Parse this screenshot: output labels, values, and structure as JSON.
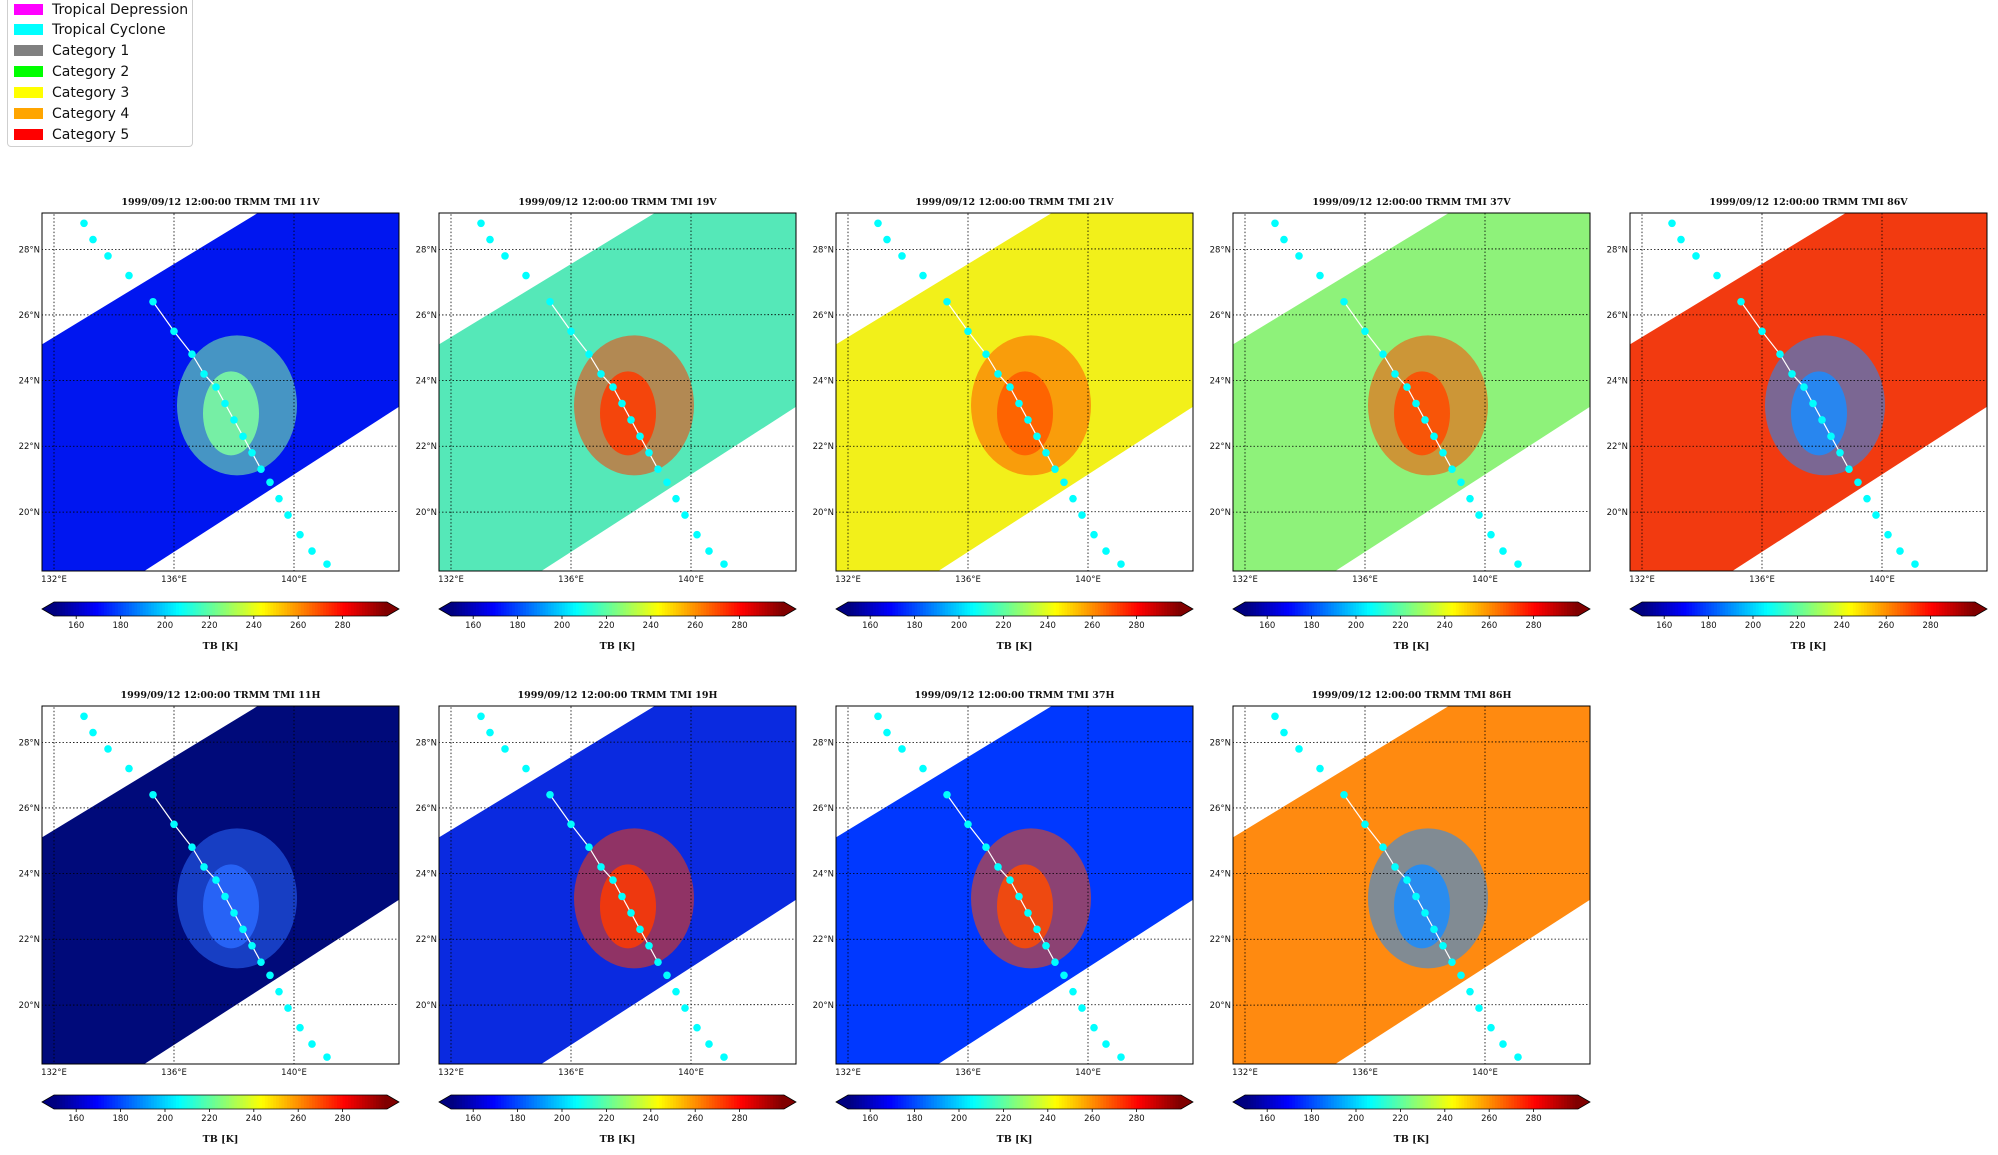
{
  "legend": {
    "items": [
      {
        "label": "Tropical Depression",
        "color": "#ff00ff"
      },
      {
        "label": "Tropical Cyclone",
        "color": "#00ffff"
      },
      {
        "label": "Category 1",
        "color": "#808080"
      },
      {
        "label": "Category 2",
        "color": "#00ff00"
      },
      {
        "label": "Category 3",
        "color": "#ffff00"
      },
      {
        "label": "Category 4",
        "color": "#ffa500"
      },
      {
        "label": "Category 5",
        "color": "#ff0000"
      }
    ]
  },
  "chart_data": [
    {
      "type": "heatmap",
      "title": "1999/09/12 12:00:00  TRMM TMI 11V",
      "channel": "11V",
      "background": "#0016f0",
      "core": "#7fffa0",
      "colorbar_label": "TB [K]"
    },
    {
      "type": "heatmap",
      "title": "1999/09/12 12:00:00  TRMM TMI 19V",
      "channel": "19V",
      "background": "#55e8b8",
      "core": "#ff3a00",
      "colorbar_label": "TB [K]"
    },
    {
      "type": "heatmap",
      "title": "1999/09/12 12:00:00  TRMM TMI 21V",
      "channel": "21V",
      "background": "#f2f01a",
      "core": "#ff5a00",
      "colorbar_label": "TB [K]"
    },
    {
      "type": "heatmap",
      "title": "1999/09/12 12:00:00  TRMM TMI 37V",
      "channel": "37V",
      "background": "#8ef27a",
      "core": "#ff4a00",
      "colorbar_label": "TB [K]"
    },
    {
      "type": "heatmap",
      "title": "1999/09/12 12:00:00  TRMM TMI 86V",
      "channel": "86V",
      "background": "#f23a10",
      "core": "#1a8cff",
      "colorbar_label": "TB [K]"
    },
    {
      "type": "heatmap",
      "title": "1999/09/12 12:00:00  TRMM TMI 11H",
      "channel": "11H",
      "background": "#000a7a",
      "core": "#2a6aff",
      "colorbar_label": "TB [K]"
    },
    {
      "type": "heatmap",
      "title": "1999/09/12 12:00:00  TRMM TMI 19H",
      "channel": "19H",
      "background": "#0a2ae0",
      "core": "#ff3a00",
      "colorbar_label": "TB [K]"
    },
    {
      "type": "heatmap",
      "title": "1999/09/12 12:00:00  TRMM TMI 37H",
      "channel": "37H",
      "background": "#0038ff",
      "core": "#ff4a00",
      "colorbar_label": "TB [K]"
    },
    {
      "type": "heatmap",
      "title": "1999/09/12 12:00:00  TRMM TMI 86H",
      "channel": "86H",
      "background": "#ff8a10",
      "core": "#1a8cff",
      "colorbar_label": "TB [K]"
    }
  ],
  "axes": {
    "lon_ticks": [
      "132°E",
      "136°E",
      "140°E"
    ],
    "lat_ticks": [
      "28°N",
      "26°N",
      "24°N",
      "22°N",
      "20°N"
    ],
    "colorbar_ticks": [
      "160",
      "180",
      "200",
      "220",
      "240",
      "260",
      "280"
    ],
    "colorbar_range": [
      150,
      300
    ]
  },
  "track": {
    "color": "#00ffff",
    "points": [
      [
        133.0,
        28.8
      ],
      [
        133.3,
        28.3
      ],
      [
        133.8,
        27.8
      ],
      [
        134.5,
        27.2
      ],
      [
        135.3,
        26.4
      ],
      [
        136.0,
        25.5
      ],
      [
        136.6,
        24.8
      ],
      [
        137.0,
        24.2
      ],
      [
        137.4,
        23.8
      ],
      [
        137.7,
        23.3
      ],
      [
        138.0,
        22.8
      ],
      [
        138.3,
        22.3
      ],
      [
        138.6,
        21.8
      ],
      [
        138.9,
        21.3
      ],
      [
        139.2,
        20.9
      ],
      [
        139.5,
        20.4
      ],
      [
        139.8,
        19.9
      ],
      [
        140.2,
        19.3
      ],
      [
        140.6,
        18.8
      ],
      [
        141.1,
        18.4
      ]
    ]
  }
}
